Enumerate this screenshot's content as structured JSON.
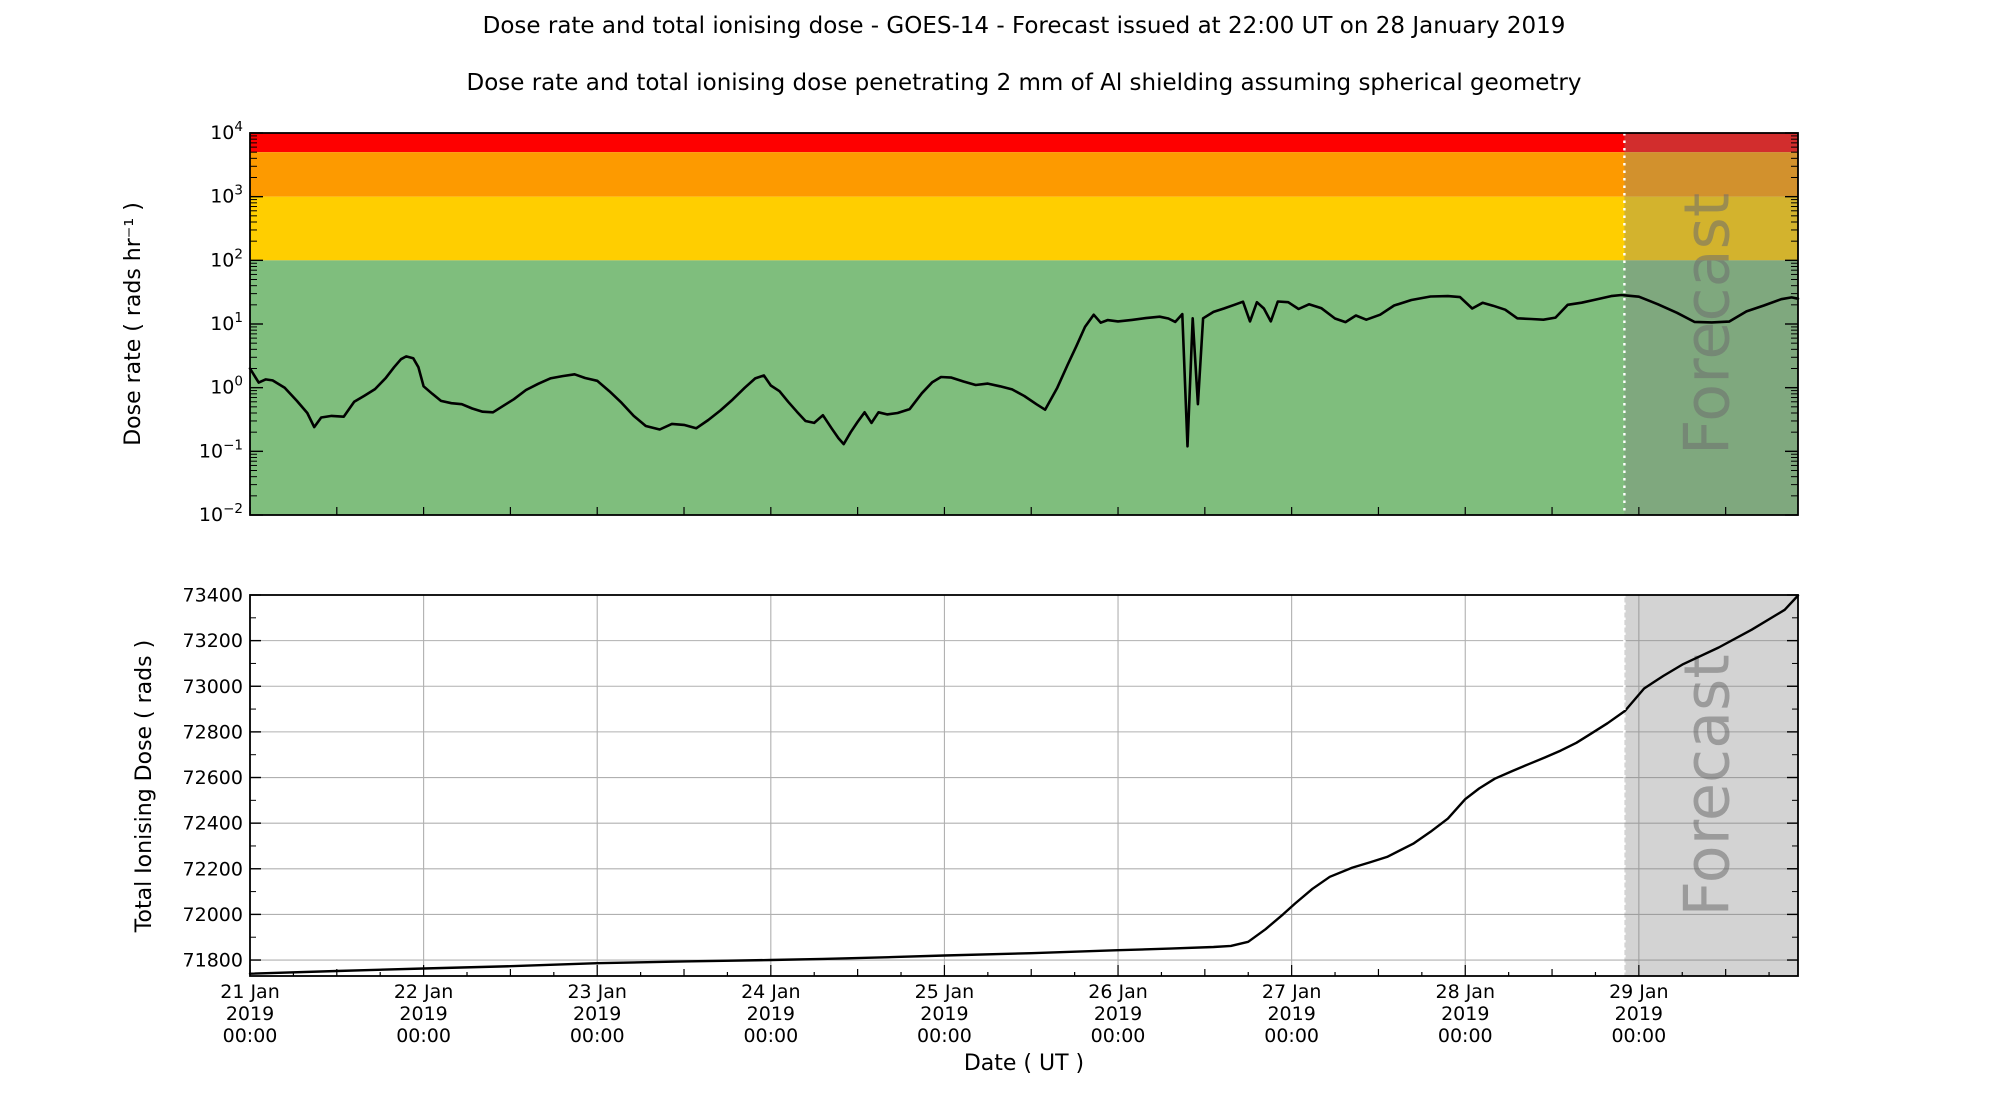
{
  "header": {
    "title": "Dose rate and total ionising dose - GOES-14 - Forecast issued at 22:00 UT on 28 January 2019",
    "subtitle": "Dose rate and total ionising dose penetrating 2 mm of Al shielding assuming spherical geometry"
  },
  "axes": {
    "x_label": "Date ( UT )"
  },
  "forecast": {
    "watermark": "Forecast",
    "start_day": 7.9167,
    "overlay_color": "rgba(128,128,128,0.35)",
    "boundary_line_color": "#ffffff"
  },
  "x_axis": {
    "label": "Date ( UT )",
    "span_days": 8.9167,
    "day_tick_labels": [
      [
        "21 Jan",
        "2019",
        "00:00"
      ],
      [
        "22 Jan",
        "2019",
        "00:00"
      ],
      [
        "23 Jan",
        "2019",
        "00:00"
      ],
      [
        "24 Jan",
        "2019",
        "00:00"
      ],
      [
        "25 Jan",
        "2019",
        "00:00"
      ],
      [
        "26 Jan",
        "2019",
        "00:00"
      ],
      [
        "27 Jan",
        "2019",
        "00:00"
      ],
      [
        "28 Jan",
        "2019",
        "00:00"
      ],
      [
        "29 Jan",
        "2019",
        "00:00"
      ]
    ]
  },
  "chart_data": [
    {
      "type": "line",
      "panel": "dose_rate",
      "ylabel": "Dose rate ( rads hr⁻¹ )",
      "yscale": "log",
      "ylim": [
        0.01,
        10000
      ],
      "y_tick_exponents": [
        4,
        3,
        2,
        1,
        0,
        -1,
        -2
      ],
      "x_range_days": [
        0,
        8.9167
      ],
      "forecast_start_day": 7.9167,
      "grid": false,
      "threshold_bands": [
        {
          "color_name": "red",
          "min": 5000,
          "max": 10000,
          "color": "#FE0000"
        },
        {
          "color_name": "orange",
          "min": 1000,
          "max": 5000,
          "color": "#FD9A00"
        },
        {
          "color_name": "yellow",
          "min": 100,
          "max": 1000,
          "color": "#FFCE00"
        },
        {
          "color_name": "green",
          "min": 0.01,
          "max": 100,
          "color": "#7FBE7D"
        }
      ],
      "series": [
        {
          "name": "dose_rate_rads_per_hr",
          "color": "#000000",
          "points_day_value": [
            [
              0.0,
              2.0
            ],
            [
              0.05,
              1.2
            ],
            [
              0.09,
              1.35
            ],
            [
              0.13,
              1.3
            ],
            [
              0.2,
              1.0
            ],
            [
              0.27,
              0.62
            ],
            [
              0.33,
              0.4
            ],
            [
              0.37,
              0.24
            ],
            [
              0.41,
              0.34
            ],
            [
              0.47,
              0.36
            ],
            [
              0.54,
              0.35
            ],
            [
              0.6,
              0.6
            ],
            [
              0.66,
              0.75
            ],
            [
              0.72,
              0.95
            ],
            [
              0.78,
              1.4
            ],
            [
              0.83,
              2.1
            ],
            [
              0.87,
              2.8
            ],
            [
              0.9,
              3.1
            ],
            [
              0.94,
              2.9
            ],
            [
              0.97,
              2.1
            ],
            [
              1.0,
              1.05
            ],
            [
              1.05,
              0.8
            ],
            [
              1.1,
              0.62
            ],
            [
              1.16,
              0.57
            ],
            [
              1.22,
              0.55
            ],
            [
              1.28,
              0.47
            ],
            [
              1.34,
              0.42
            ],
            [
              1.4,
              0.41
            ],
            [
              1.46,
              0.52
            ],
            [
              1.52,
              0.66
            ],
            [
              1.59,
              0.92
            ],
            [
              1.66,
              1.15
            ],
            [
              1.73,
              1.4
            ],
            [
              1.8,
              1.52
            ],
            [
              1.87,
              1.62
            ],
            [
              1.93,
              1.42
            ],
            [
              2.0,
              1.28
            ],
            [
              2.07,
              0.88
            ],
            [
              2.14,
              0.58
            ],
            [
              2.21,
              0.36
            ],
            [
              2.28,
              0.25
            ],
            [
              2.36,
              0.22
            ],
            [
              2.43,
              0.27
            ],
            [
              2.5,
              0.26
            ],
            [
              2.57,
              0.23
            ],
            [
              2.64,
              0.31
            ],
            [
              2.71,
              0.44
            ],
            [
              2.78,
              0.65
            ],
            [
              2.85,
              1.0
            ],
            [
              2.91,
              1.4
            ],
            [
              2.96,
              1.55
            ],
            [
              3.0,
              1.08
            ],
            [
              3.05,
              0.88
            ],
            [
              3.1,
              0.6
            ],
            [
              3.15,
              0.42
            ],
            [
              3.2,
              0.3
            ],
            [
              3.25,
              0.28
            ],
            [
              3.3,
              0.37
            ],
            [
              3.35,
              0.23
            ],
            [
              3.39,
              0.16
            ],
            [
              3.42,
              0.13
            ],
            [
              3.46,
              0.2
            ],
            [
              3.5,
              0.29
            ],
            [
              3.54,
              0.41
            ],
            [
              3.58,
              0.28
            ],
            [
              3.62,
              0.41
            ],
            [
              3.67,
              0.38
            ],
            [
              3.73,
              0.4
            ],
            [
              3.8,
              0.46
            ],
            [
              3.87,
              0.82
            ],
            [
              3.93,
              1.22
            ],
            [
              3.98,
              1.47
            ],
            [
              4.04,
              1.44
            ],
            [
              4.11,
              1.25
            ],
            [
              4.18,
              1.1
            ],
            [
              4.25,
              1.16
            ],
            [
              4.32,
              1.05
            ],
            [
              4.39,
              0.94
            ],
            [
              4.46,
              0.74
            ],
            [
              4.53,
              0.55
            ],
            [
              4.58,
              0.45
            ],
            [
              4.65,
              1.0
            ],
            [
              4.71,
              2.3
            ],
            [
              4.76,
              4.5
            ],
            [
              4.81,
              9.0
            ],
            [
              4.86,
              14.0
            ],
            [
              4.9,
              10.5
            ],
            [
              4.94,
              11.5
            ],
            [
              5.0,
              11.0
            ],
            [
              5.08,
              11.6
            ],
            [
              5.16,
              12.4
            ],
            [
              5.24,
              13.0
            ],
            [
              5.29,
              12.2
            ],
            [
              5.33,
              10.8
            ],
            [
              5.37,
              14.3
            ],
            [
              5.4,
              0.12
            ],
            [
              5.43,
              12.3
            ],
            [
              5.46,
              0.55
            ],
            [
              5.49,
              12.3
            ],
            [
              5.55,
              15.5
            ],
            [
              5.61,
              17.5
            ],
            [
              5.67,
              20.0
            ],
            [
              5.72,
              22.4
            ],
            [
              5.76,
              11.0
            ],
            [
              5.8,
              22.0
            ],
            [
              5.84,
              17.5
            ],
            [
              5.88,
              11.0
            ],
            [
              5.92,
              22.6
            ],
            [
              5.98,
              22.0
            ],
            [
              6.04,
              17.2
            ],
            [
              6.1,
              20.4
            ],
            [
              6.17,
              17.8
            ],
            [
              6.25,
              12.2
            ],
            [
              6.31,
              10.7
            ],
            [
              6.37,
              13.6
            ],
            [
              6.43,
              11.7
            ],
            [
              6.51,
              14.0
            ],
            [
              6.59,
              19.5
            ],
            [
              6.69,
              23.8
            ],
            [
              6.8,
              27.0
            ],
            [
              6.9,
              27.4
            ],
            [
              6.97,
              26.5
            ],
            [
              7.04,
              17.5
            ],
            [
              7.1,
              21.5
            ],
            [
              7.16,
              19.4
            ],
            [
              7.23,
              16.8
            ],
            [
              7.3,
              12.3
            ],
            [
              7.38,
              12.0
            ],
            [
              7.45,
              11.7
            ],
            [
              7.52,
              12.6
            ],
            [
              7.59,
              20.0
            ],
            [
              7.67,
              21.6
            ],
            [
              7.75,
              24.2
            ],
            [
              7.84,
              27.4
            ],
            [
              7.9,
              28.5
            ],
            [
              7.9167,
              28.2
            ],
            [
              8.0,
              26.8
            ],
            [
              8.11,
              20.4
            ],
            [
              8.22,
              15.0
            ],
            [
              8.32,
              10.8
            ],
            [
              8.42,
              10.6
            ],
            [
              8.52,
              10.9
            ],
            [
              8.62,
              15.8
            ],
            [
              8.72,
              19.5
            ],
            [
              8.82,
              24.5
            ],
            [
              8.88,
              26.2
            ],
            [
              8.9167,
              25.0
            ]
          ]
        }
      ]
    },
    {
      "type": "line",
      "panel": "total_ionising_dose",
      "ylabel": "Total Ionising Dose ( rads )",
      "yscale": "linear",
      "ylim": [
        71730,
        73400
      ],
      "y_ticks": [
        71800,
        72000,
        72200,
        72400,
        72600,
        72800,
        73000,
        73200,
        73400
      ],
      "x_range_days": [
        0,
        8.9167
      ],
      "forecast_start_day": 7.9167,
      "grid": true,
      "grid_color": "#b0b0b0",
      "series": [
        {
          "name": "total_ionising_dose_rads",
          "color": "#000000",
          "points_day_value": [
            [
              0.0,
              71740
            ],
            [
              0.5,
              71752
            ],
            [
              1.0,
              71763
            ],
            [
              1.5,
              71773
            ],
            [
              2.0,
              71786
            ],
            [
              2.5,
              71794
            ],
            [
              3.0,
              71800
            ],
            [
              3.3,
              71805
            ],
            [
              3.7,
              71813
            ],
            [
              4.0,
              71820
            ],
            [
              4.5,
              71830
            ],
            [
              5.0,
              71843
            ],
            [
              5.3,
              71850
            ],
            [
              5.55,
              71857
            ],
            [
              5.65,
              71862
            ],
            [
              5.75,
              71880
            ],
            [
              5.85,
              71935
            ],
            [
              5.95,
              72000
            ],
            [
              6.02,
              72048
            ],
            [
              6.12,
              72112
            ],
            [
              6.22,
              72165
            ],
            [
              6.35,
              72205
            ],
            [
              6.45,
              72228
            ],
            [
              6.55,
              72252
            ],
            [
              6.7,
              72310
            ],
            [
              6.8,
              72362
            ],
            [
              6.9,
              72420
            ],
            [
              7.0,
              72505
            ],
            [
              7.08,
              72552
            ],
            [
              7.17,
              72595
            ],
            [
              7.27,
              72628
            ],
            [
              7.37,
              72660
            ],
            [
              7.46,
              72688
            ],
            [
              7.55,
              72718
            ],
            [
              7.64,
              72752
            ],
            [
              7.72,
              72790
            ],
            [
              7.82,
              72838
            ],
            [
              7.92,
              72892
            ],
            [
              8.03,
              72990
            ],
            [
              8.14,
              73045
            ],
            [
              8.25,
              73095
            ],
            [
              8.46,
              73170
            ],
            [
              8.65,
              73248
            ],
            [
              8.84,
              73335
            ],
            [
              8.9167,
              73398
            ]
          ]
        }
      ]
    }
  ]
}
